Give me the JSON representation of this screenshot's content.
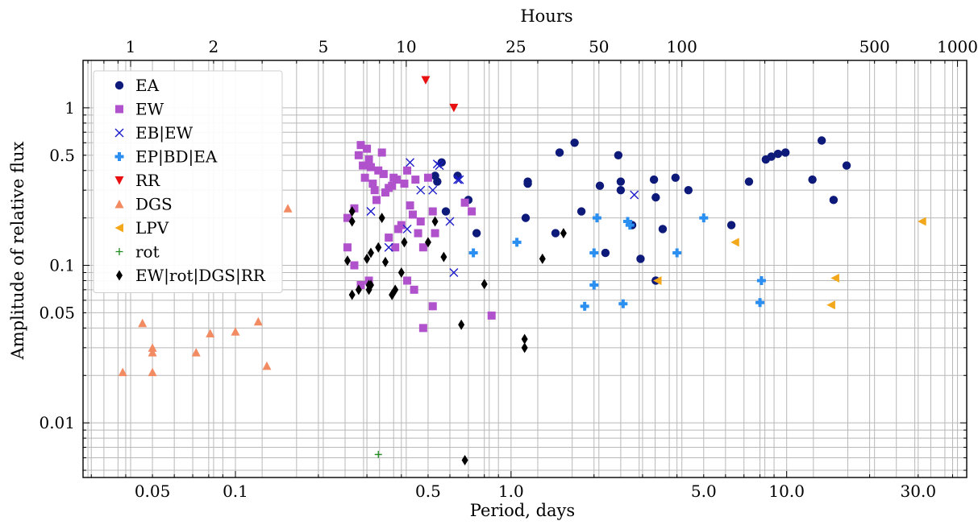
{
  "chart_data": {
    "type": "scatter",
    "xlabel": "Period, days",
    "ylabel": "Amplitude of relative flux",
    "top_xlabel": "Hours",
    "x_scale": "log",
    "y_scale": "log",
    "xlim": [
      0.028,
      45
    ],
    "ylim": [
      0.0045,
      2.0
    ],
    "grid": true,
    "legend_position": "top-left",
    "x_ticks": [
      {
        "value": 0.05,
        "label": "0.05"
      },
      {
        "value": 0.1,
        "label": "0.1"
      },
      {
        "value": 0.5,
        "label": "0.5"
      },
      {
        "value": 1.0,
        "label": "1.0"
      },
      {
        "value": 5.0,
        "label": "5.0"
      },
      {
        "value": 10.0,
        "label": "10.0"
      },
      {
        "value": 30.0,
        "label": "30.0"
      }
    ],
    "top_x_ticks": [
      {
        "value": 1,
        "label": "1"
      },
      {
        "value": 2,
        "label": "2"
      },
      {
        "value": 5,
        "label": "5"
      },
      {
        "value": 10,
        "label": "10"
      },
      {
        "value": 25,
        "label": "25"
      },
      {
        "value": 50,
        "label": "50"
      },
      {
        "value": 100,
        "label": "100"
      },
      {
        "value": 500,
        "label": "500"
      },
      {
        "value": 1000,
        "label": "1000"
      }
    ],
    "y_ticks": [
      {
        "value": 0.01,
        "label": "0.01"
      },
      {
        "value": 0.05,
        "label": "0.05"
      },
      {
        "value": 0.1,
        "label": "0.1"
      },
      {
        "value": 0.5,
        "label": "0.5"
      },
      {
        "value": 1.0,
        "label": "1"
      }
    ],
    "series": [
      {
        "name": "EA",
        "marker": "circle",
        "color": "#0d1a7a",
        "points": [
          [
            0.56,
            0.45
          ],
          [
            0.53,
            0.37
          ],
          [
            0.54,
            0.34
          ],
          [
            0.64,
            0.37
          ],
          [
            0.7,
            0.26
          ],
          [
            0.58,
            0.22
          ],
          [
            0.75,
            0.16
          ],
          [
            1.15,
            0.34
          ],
          [
            1.15,
            0.33
          ],
          [
            1.13,
            0.2
          ],
          [
            1.5,
            0.52
          ],
          [
            1.7,
            0.6
          ],
          [
            1.8,
            0.22
          ],
          [
            1.45,
            0.16
          ],
          [
            2.1,
            0.32
          ],
          [
            2.2,
            0.12
          ],
          [
            2.45,
            0.5
          ],
          [
            2.5,
            0.34
          ],
          [
            2.5,
            0.3
          ],
          [
            2.75,
            0.18
          ],
          [
            2.95,
            0.11
          ],
          [
            3.3,
            0.35
          ],
          [
            3.35,
            0.27
          ],
          [
            3.55,
            0.17
          ],
          [
            3.95,
            0.36
          ],
          [
            4.4,
            0.3
          ],
          [
            3.35,
            0.08
          ],
          [
            6.3,
            0.18
          ],
          [
            7.3,
            0.34
          ],
          [
            8.4,
            0.47
          ],
          [
            8.8,
            0.49
          ],
          [
            9.3,
            0.51
          ],
          [
            9.9,
            0.52
          ],
          [
            12.4,
            0.35
          ],
          [
            13.4,
            0.62
          ],
          [
            14.8,
            0.26
          ],
          [
            16.5,
            0.43
          ]
        ]
      },
      {
        "name": "EW",
        "marker": "square",
        "color": "#b052cc",
        "points": [
          [
            0.255,
            0.2
          ],
          [
            0.27,
            0.23
          ],
          [
            0.28,
            0.5
          ],
          [
            0.285,
            0.58
          ],
          [
            0.29,
            0.43
          ],
          [
            0.295,
            0.36
          ],
          [
            0.3,
            0.55
          ],
          [
            0.305,
            0.47
          ],
          [
            0.31,
            0.42
          ],
          [
            0.315,
            0.33
          ],
          [
            0.32,
            0.3
          ],
          [
            0.325,
            0.26
          ],
          [
            0.33,
            0.4
          ],
          [
            0.34,
            0.52
          ],
          [
            0.345,
            0.38
          ],
          [
            0.35,
            0.29
          ],
          [
            0.36,
            0.31
          ],
          [
            0.37,
            0.32
          ],
          [
            0.375,
            0.36
          ],
          [
            0.385,
            0.35
          ],
          [
            0.39,
            0.17
          ],
          [
            0.4,
            0.18
          ],
          [
            0.41,
            0.33
          ],
          [
            0.42,
            0.4
          ],
          [
            0.43,
            0.24
          ],
          [
            0.44,
            0.21
          ],
          [
            0.46,
            0.16
          ],
          [
            0.45,
            0.35
          ],
          [
            0.47,
            0.19
          ],
          [
            0.48,
            0.13
          ],
          [
            0.5,
            0.36
          ],
          [
            0.52,
            0.22
          ],
          [
            0.53,
            0.16
          ],
          [
            0.255,
            0.13
          ],
          [
            0.27,
            0.1
          ],
          [
            0.285,
            0.075
          ],
          [
            0.305,
            0.08
          ],
          [
            0.36,
            0.15
          ],
          [
            0.38,
            0.13
          ],
          [
            0.42,
            0.08
          ],
          [
            0.445,
            0.07
          ],
          [
            0.52,
            0.055
          ],
          [
            0.48,
            0.04
          ],
          [
            0.68,
            0.25
          ],
          [
            0.72,
            0.22
          ],
          [
            0.85,
            0.048
          ]
        ]
      },
      {
        "name": "EB|EW",
        "marker": "x",
        "color": "#1a1ac8",
        "points": [
          [
            0.31,
            0.22
          ],
          [
            0.36,
            0.13
          ],
          [
            0.42,
            0.17
          ],
          [
            0.43,
            0.45
          ],
          [
            0.47,
            0.3
          ],
          [
            0.52,
            0.3
          ],
          [
            0.54,
            0.44
          ],
          [
            0.6,
            0.19
          ],
          [
            0.62,
            0.09
          ],
          [
            0.64,
            0.35
          ],
          [
            0.65,
            0.35
          ],
          [
            0.55,
            0.43
          ],
          [
            2.8,
            0.28
          ]
        ]
      },
      {
        "name": "EP|BD|EA",
        "marker": "plus",
        "color": "#2a8ff0",
        "points": [
          [
            0.73,
            0.12
          ],
          [
            1.05,
            0.14
          ],
          [
            2.0,
            0.075
          ],
          [
            2.0,
            0.12
          ],
          [
            1.85,
            0.055
          ],
          [
            2.05,
            0.2
          ],
          [
            2.55,
            0.057
          ],
          [
            2.65,
            0.19
          ],
          [
            2.7,
            0.18
          ],
          [
            4.0,
            0.12
          ],
          [
            5.0,
            0.2
          ],
          [
            8.1,
            0.08
          ],
          [
            8.0,
            0.058
          ]
        ]
      },
      {
        "name": "RR",
        "marker": "triangle-down",
        "color": "#e81010",
        "points": [
          [
            0.49,
            1.5
          ],
          [
            0.62,
            1.0
          ]
        ]
      },
      {
        "name": "DGS",
        "marker": "triangle-up",
        "color": "#f28a62",
        "points": [
          [
            0.039,
            0.021
          ],
          [
            0.046,
            0.043
          ],
          [
            0.05,
            0.03
          ],
          [
            0.05,
            0.028
          ],
          [
            0.05,
            0.021
          ],
          [
            0.072,
            0.028
          ],
          [
            0.081,
            0.037
          ],
          [
            0.1,
            0.038
          ],
          [
            0.121,
            0.044
          ],
          [
            0.13,
            0.023
          ],
          [
            0.155,
            0.23
          ]
        ]
      },
      {
        "name": "LPV",
        "marker": "triangle-left",
        "color": "#f2a81a",
        "points": [
          [
            3.4,
            0.08
          ],
          [
            6.5,
            0.14
          ],
          [
            14.5,
            0.056
          ],
          [
            15.0,
            0.083
          ],
          [
            31.0,
            0.19
          ]
        ]
      },
      {
        "name": "rot",
        "marker": "plus-thin",
        "color": "#1e8c1e",
        "points": [
          [
            0.33,
            0.0063
          ]
        ]
      },
      {
        "name": "EW|rot|DGS|RR",
        "marker": "diamond",
        "color": "#000000",
        "points": [
          [
            0.255,
            0.107
          ],
          [
            0.265,
            0.065
          ],
          [
            0.265,
            0.22
          ],
          [
            0.265,
            0.19
          ],
          [
            0.28,
            0.07
          ],
          [
            0.3,
            0.11
          ],
          [
            0.305,
            0.07
          ],
          [
            0.305,
            0.075
          ],
          [
            0.31,
            0.075
          ],
          [
            0.31,
            0.12
          ],
          [
            0.33,
            0.13
          ],
          [
            0.34,
            0.2
          ],
          [
            0.35,
            0.105
          ],
          [
            0.37,
            0.065
          ],
          [
            0.37,
            0.065
          ],
          [
            0.38,
            0.07
          ],
          [
            0.4,
            0.09
          ],
          [
            0.41,
            0.14
          ],
          [
            0.5,
            0.14
          ],
          [
            0.53,
            0.19
          ],
          [
            0.57,
            0.113
          ],
          [
            0.66,
            0.042
          ],
          [
            0.68,
            0.0058
          ],
          [
            0.8,
            0.076
          ],
          [
            1.12,
            0.034
          ],
          [
            1.12,
            0.03
          ],
          [
            1.3,
            0.11
          ],
          [
            1.55,
            0.16
          ]
        ]
      }
    ]
  }
}
